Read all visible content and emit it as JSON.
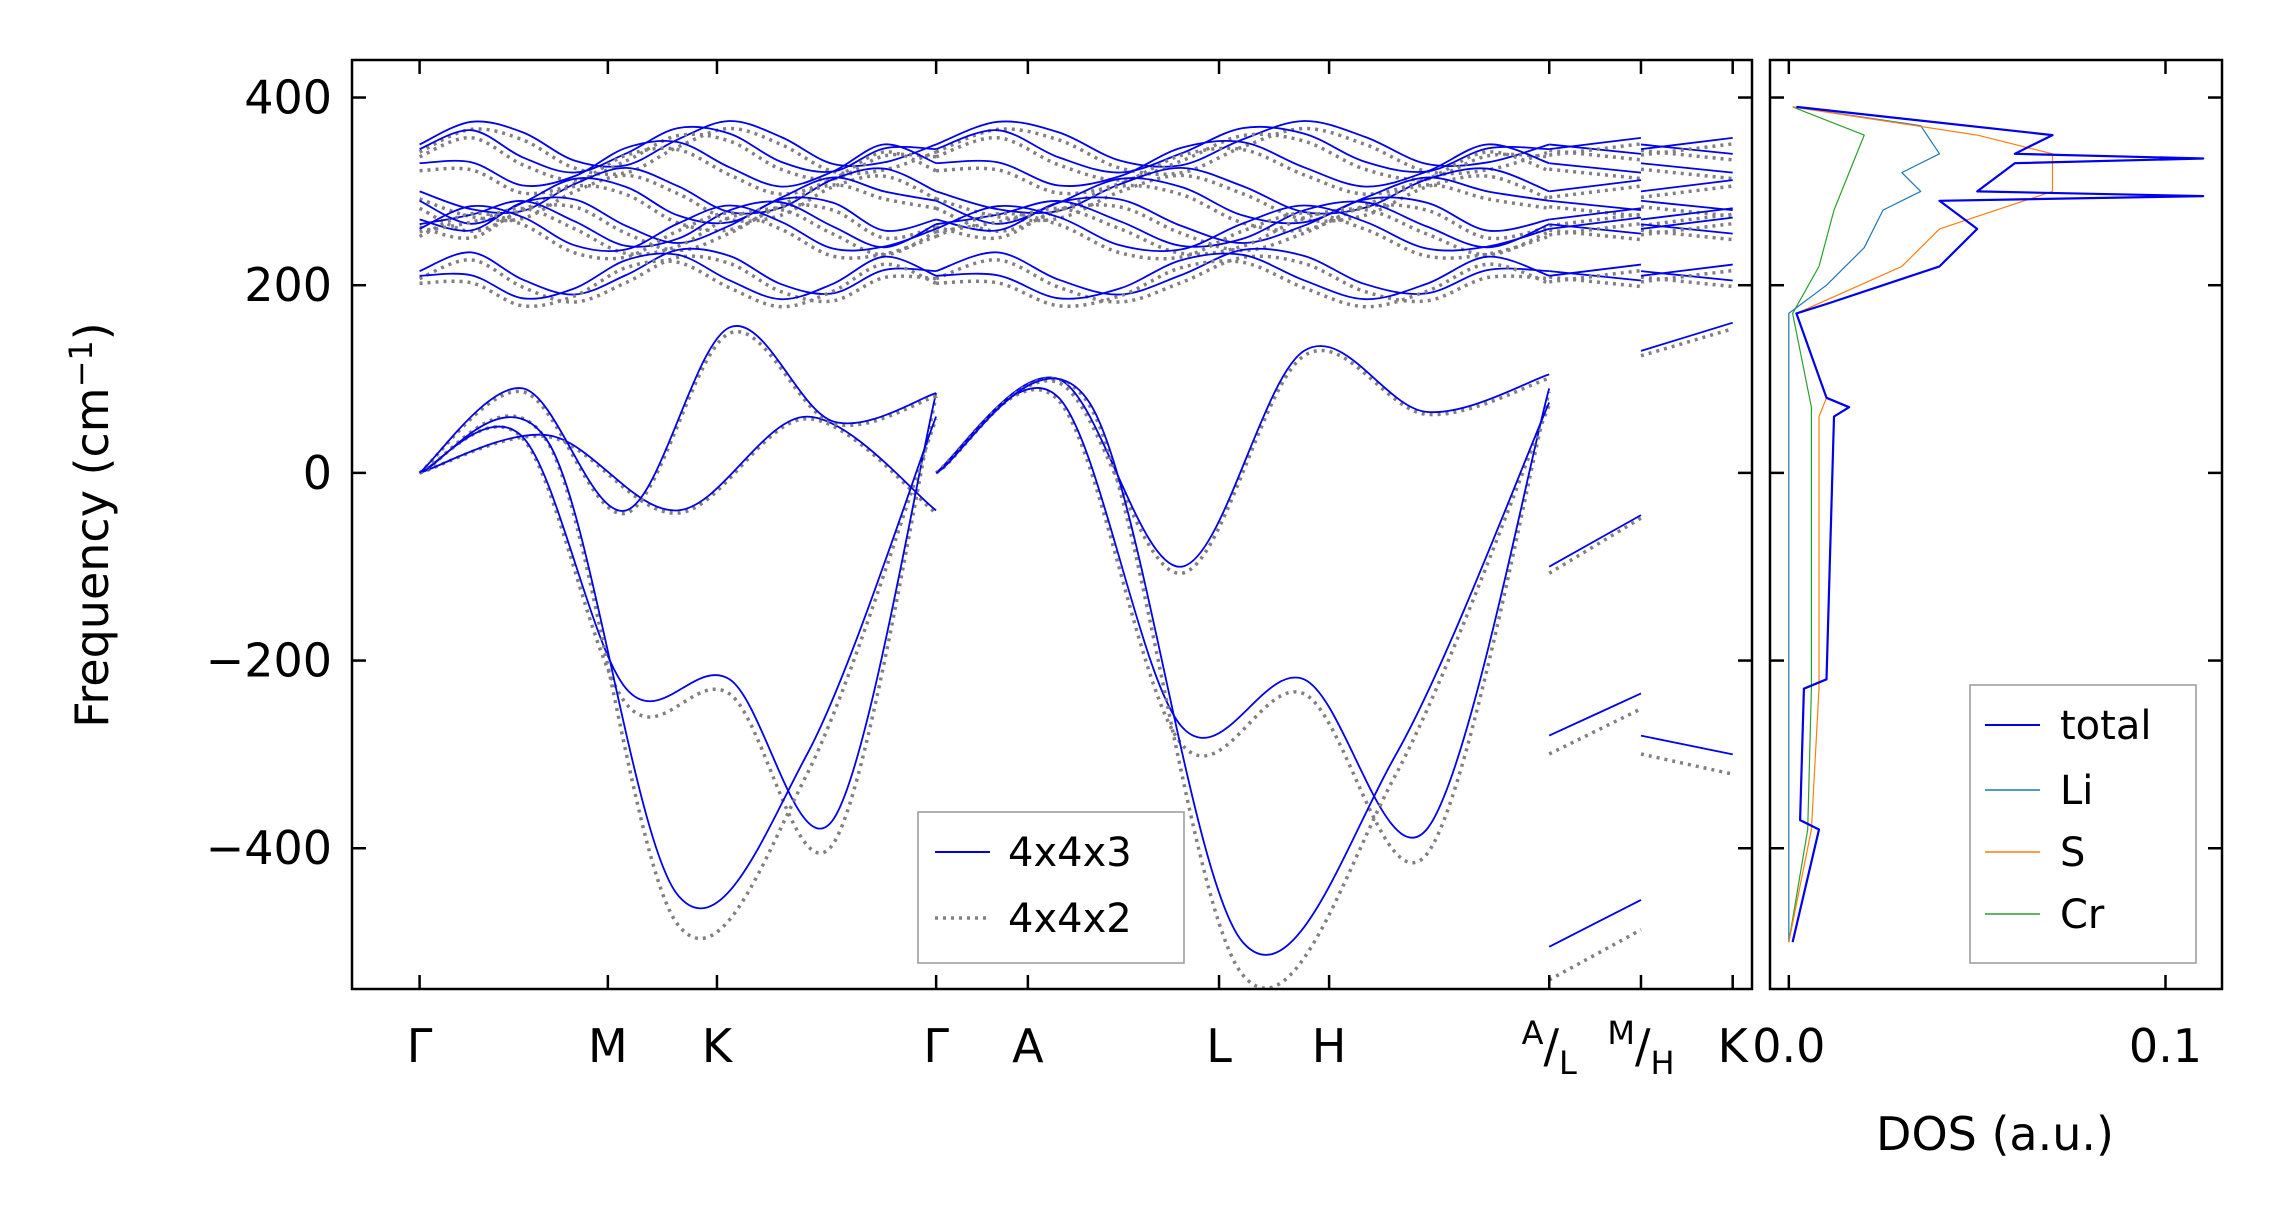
{
  "chart_data": [
    {
      "type": "line",
      "panel": "band-structure",
      "ylabel_main": "Frequency (cm",
      "ylabel_sup": "−1",
      "ylabel_close": ")",
      "ylim": [
        -550,
        440
      ],
      "yticks": [
        {
          "value": 400,
          "label": "400"
        },
        {
          "value": 200,
          "label": "200"
        },
        {
          "value": 0,
          "label": "0"
        },
        {
          "value": -200,
          "label": "−200"
        },
        {
          "value": -400,
          "label": "−400"
        }
      ],
      "xlim": [
        0,
        14.5
      ],
      "kpath_ticks": [
        {
          "x": 0.7,
          "label": "Γ"
        },
        {
          "x": 2.65,
          "label": "M"
        },
        {
          "x": 3.78,
          "label": "K"
        },
        {
          "x": 6.05,
          "label": "Γ"
        },
        {
          "x": 7.0,
          "label": "A"
        },
        {
          "x": 8.98,
          "label": "L"
        },
        {
          "x": 10.12,
          "label": "H"
        },
        {
          "x": 12.4,
          "label": "A/L"
        },
        {
          "x": 13.35,
          "label": "M/H"
        },
        {
          "x": 14.3,
          "label": "K"
        }
      ],
      "tick_A_over_L": {
        "top": "A",
        "bottom": "L"
      },
      "tick_M_over_H": {
        "top": "M",
        "bottom": "H"
      },
      "colors": {
        "4x4x3": "#0000ee",
        "4x4x2": "#808080"
      },
      "legend": {
        "position": "lower-center",
        "entries": [
          {
            "label": "4x4x3",
            "style": "solid",
            "color": "#0000ee"
          },
          {
            "label": "4x4x2",
            "style": "dotted",
            "color": "#808080"
          }
        ]
      },
      "segments": [
        {
          "x": [
            0.7,
            2.65,
            3.78,
            6.05
          ],
          "bands": [
            {
              "y": [
                0,
                40,
                -40,
                60,
                -40
              ],
              "type": "acoustic"
            },
            {
              "y": [
                0,
                38,
                -230,
                -220,
                -370,
                85
              ]
            },
            {
              "y": [
                0,
                32,
                -450,
                -300,
                60
              ]
            },
            {
              "y": [
                0,
                90,
                -40,
                155,
                55,
                85
              ]
            }
          ]
        },
        {
          "x": [
            6.05,
            7.0,
            8.98,
            10.12,
            12.4
          ],
          "bands": [
            {
              "y": [
                0,
                100,
                -100,
                130,
                65,
                105
              ]
            },
            {
              "y": [
                0,
                80,
                -270,
                -220,
                -380,
                90
              ]
            },
            {
              "y": [
                0,
                75,
                -500,
                -300,
                75
              ]
            }
          ]
        },
        {
          "x": [
            12.4,
            13.35
          ],
          "bands": [
            {
              "y": [
                -100,
                -45
              ]
            },
            {
              "y": [
                -280,
                -235
              ]
            },
            {
              "y": [
                -505,
                -455
              ]
            }
          ]
        },
        {
          "x": [
            13.35,
            14.3
          ],
          "bands": [
            {
              "y": [
                130,
                160
              ]
            },
            {
              "y": [
                -280,
                -300
              ]
            }
          ]
        }
      ],
      "optical_band_center_values": [
        350,
        345,
        330,
        300,
        290,
        270,
        265,
        260,
        215,
        210
      ]
    },
    {
      "type": "line",
      "panel": "density-of-states",
      "xlabel": "DOS (a.u.)",
      "xlim": [
        -0.005,
        0.115
      ],
      "xticks": [
        {
          "value": 0.0,
          "label": "0.0"
        },
        {
          "value": 0.1,
          "label": "0.1"
        }
      ],
      "ylim": [
        -550,
        440
      ],
      "legend": {
        "position": "lower-right",
        "entries": [
          {
            "label": "total",
            "color": "#0000ee"
          },
          {
            "label": "Li",
            "color": "#1f77b4"
          },
          {
            "label": "S",
            "color": "#ff7f0e"
          },
          {
            "label": "Cr",
            "color": "#2ca02c"
          }
        ]
      },
      "series": [
        {
          "name": "total",
          "y": [
            -500,
            -380,
            -370,
            -230,
            -220,
            60,
            70,
            80,
            170,
            180,
            220,
            260,
            290,
            295,
            300,
            330,
            335,
            340,
            360,
            390
          ],
          "values": [
            0.001,
            0.008,
            0.003,
            0.004,
            0.01,
            0.012,
            0.016,
            0.01,
            0.002,
            0.01,
            0.04,
            0.05,
            0.04,
            0.11,
            0.05,
            0.06,
            0.11,
            0.06,
            0.07,
            0.002
          ]
        },
        {
          "name": "Li",
          "y": [
            -500,
            170,
            200,
            240,
            280,
            300,
            320,
            340,
            370,
            390
          ],
          "values": [
            0.0,
            0.0,
            0.01,
            0.02,
            0.025,
            0.035,
            0.03,
            0.04,
            0.035,
            0.001
          ]
        },
        {
          "name": "S",
          "y": [
            -500,
            -380,
            -230,
            60,
            80,
            170,
            220,
            260,
            300,
            340,
            360,
            390
          ],
          "values": [
            0.0,
            0.006,
            0.008,
            0.008,
            0.01,
            0.002,
            0.03,
            0.04,
            0.07,
            0.07,
            0.05,
            0.001
          ]
        },
        {
          "name": "Cr",
          "y": [
            -500,
            -380,
            -230,
            70,
            170,
            220,
            280,
            320,
            360,
            390
          ],
          "values": [
            0.0,
            0.005,
            0.006,
            0.006,
            0.001,
            0.008,
            0.012,
            0.016,
            0.02,
            0.001
          ]
        }
      ]
    }
  ]
}
